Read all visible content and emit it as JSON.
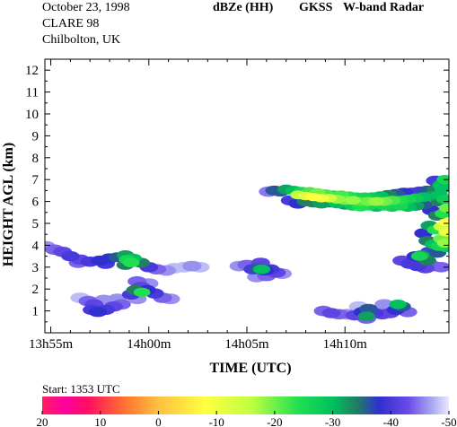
{
  "header": {
    "date": "October 23, 1998",
    "campaign": "CLARE 98",
    "location": "Chilbolton, UK",
    "product": "dBZe (HH)",
    "instrument": "GKSS",
    "radar": "W-band Radar"
  },
  "start_text": "Start: 1353 UTC",
  "colors": {
    "background": "#ffffff",
    "plot_border": "#000000"
  },
  "chart_data": {
    "type": "heatmap",
    "xlabel": "TIME (UTC)",
    "ylabel": "HEIGHT AGL (km)",
    "x_unit": "minutes after 13h55m",
    "xlim": [
      -0.3,
      20.3
    ],
    "ylim": [
      0,
      12.5
    ],
    "x_ticks": [
      {
        "label": "13h55m",
        "value": 0
      },
      {
        "label": "14h00m",
        "value": 5
      },
      {
        "label": "14h05m",
        "value": 10
      },
      {
        "label": "14h10m",
        "value": 15
      }
    ],
    "y_ticks": [
      1,
      2,
      3,
      4,
      5,
      6,
      7,
      8,
      9,
      10,
      11,
      12
    ],
    "grid": false,
    "colorbar": {
      "unit": "dBZe",
      "ticks": [
        20,
        10,
        0,
        -10,
        -20,
        -30,
        -40,
        -50
      ],
      "stops": [
        {
          "value": 20,
          "color": "#ff2060"
        },
        {
          "value": 16,
          "color": "#ff00a0"
        },
        {
          "value": 12,
          "color": "#ff1060"
        },
        {
          "value": 6,
          "color": "#ff7030"
        },
        {
          "value": 0,
          "color": "#ffc040"
        },
        {
          "value": -8,
          "color": "#ffff40"
        },
        {
          "value": -16,
          "color": "#c0ff40"
        },
        {
          "value": -24,
          "color": "#20e050"
        },
        {
          "value": -30,
          "color": "#00c060"
        },
        {
          "value": -34,
          "color": "#208060"
        },
        {
          "value": -38,
          "color": "#3030d0"
        },
        {
          "value": -43,
          "color": "#6a4ae8"
        },
        {
          "value": -47,
          "color": "#a8a8f0"
        },
        {
          "value": -50,
          "color": "#e8e8ff"
        }
      ]
    },
    "echoes": [
      {
        "name": "upper-layer-edge",
        "cells": [
          [
            11.1,
            6.45,
            -45
          ],
          [
            11.4,
            6.5,
            -36
          ],
          [
            11.7,
            6.45,
            -36
          ],
          [
            12.0,
            6.55,
            -32
          ],
          [
            12.4,
            6.5,
            -30
          ],
          [
            12.8,
            6.45,
            -26
          ],
          [
            13.2,
            6.45,
            -22
          ],
          [
            13.6,
            6.4,
            -20
          ],
          [
            14.0,
            6.35,
            -22
          ],
          [
            14.4,
            6.3,
            -24
          ],
          [
            14.8,
            6.3,
            -22
          ],
          [
            15.2,
            6.25,
            -24
          ],
          [
            15.6,
            6.2,
            -26
          ],
          [
            16.0,
            6.2,
            -26
          ],
          [
            16.4,
            6.2,
            -28
          ],
          [
            16.8,
            6.25,
            -30
          ],
          [
            17.2,
            6.3,
            -34
          ],
          [
            17.6,
            6.35,
            -36
          ],
          [
            18.0,
            6.4,
            -38
          ],
          [
            18.4,
            6.4,
            -40
          ],
          [
            18.8,
            6.45,
            -40
          ],
          [
            19.2,
            6.5,
            -36
          ],
          [
            19.6,
            6.55,
            -34
          ],
          [
            20.0,
            6.6,
            -30
          ],
          [
            12.2,
            6.05,
            -40
          ],
          [
            12.6,
            5.9,
            -38
          ],
          [
            13.0,
            6.0,
            -34
          ],
          [
            13.4,
            5.95,
            -34
          ],
          [
            13.8,
            5.9,
            -32
          ],
          [
            14.2,
            5.95,
            -34
          ],
          [
            14.6,
            5.9,
            -30
          ],
          [
            15.0,
            5.85,
            -32
          ],
          [
            15.4,
            5.8,
            -28
          ],
          [
            15.8,
            5.75,
            -24
          ],
          [
            16.2,
            5.8,
            -26
          ],
          [
            16.6,
            5.75,
            -30
          ],
          [
            17.0,
            5.8,
            -26
          ],
          [
            17.4,
            5.75,
            -28
          ],
          [
            17.8,
            5.8,
            -26
          ],
          [
            18.2,
            5.75,
            -30
          ],
          [
            18.6,
            5.8,
            -32
          ],
          [
            19.0,
            5.85,
            -36
          ]
        ]
      },
      {
        "name": "upper-layer-core",
        "cells": [
          [
            12.6,
            6.3,
            -16
          ],
          [
            13.0,
            6.25,
            -12
          ],
          [
            13.4,
            6.2,
            -8
          ],
          [
            13.8,
            6.15,
            -10
          ],
          [
            14.2,
            6.15,
            -14
          ],
          [
            14.6,
            6.1,
            -18
          ],
          [
            15.0,
            6.05,
            -20
          ],
          [
            15.4,
            6.05,
            -18
          ],
          [
            15.8,
            6.0,
            -22
          ],
          [
            16.2,
            6.0,
            -20
          ],
          [
            16.6,
            6.0,
            -18
          ],
          [
            17.0,
            6.0,
            -20
          ],
          [
            17.4,
            6.05,
            -22
          ],
          [
            17.8,
            6.05,
            -24
          ],
          [
            18.2,
            6.1,
            -26
          ],
          [
            18.6,
            6.15,
            -28
          ],
          [
            19.0,
            6.2,
            -30
          ],
          [
            19.4,
            6.25,
            -32
          ],
          [
            19.8,
            6.3,
            -30
          ]
        ]
      },
      {
        "name": "upper-right-plume",
        "cells": [
          [
            19.6,
            6.95,
            -40
          ],
          [
            19.9,
            6.75,
            -30
          ],
          [
            20.1,
            7.0,
            -26
          ],
          [
            19.8,
            6.0,
            -34
          ],
          [
            20.1,
            6.1,
            -28
          ],
          [
            19.4,
            5.6,
            -38
          ],
          [
            19.7,
            5.35,
            -34
          ],
          [
            20.0,
            5.45,
            -24
          ],
          [
            20.2,
            5.7,
            -20
          ],
          [
            19.3,
            4.9,
            -32
          ],
          [
            19.6,
            4.7,
            -24
          ],
          [
            19.9,
            4.85,
            -14
          ],
          [
            20.15,
            5.05,
            -8
          ],
          [
            20.15,
            4.6,
            -10
          ],
          [
            19.9,
            4.3,
            -20
          ],
          [
            20.1,
            4.1,
            -18
          ],
          [
            19.0,
            4.55,
            -38
          ],
          [
            19.2,
            4.2,
            -34
          ],
          [
            19.5,
            4.05,
            -30
          ],
          [
            19.8,
            3.95,
            -26
          ],
          [
            20.15,
            3.9,
            -28
          ],
          [
            19.3,
            3.7,
            -40
          ],
          [
            19.7,
            3.65,
            -36
          ]
        ]
      },
      {
        "name": "mid-right-clump",
        "cells": [
          [
            17.9,
            3.3,
            -42
          ],
          [
            18.3,
            3.15,
            -40
          ],
          [
            18.6,
            3.5,
            -38
          ],
          [
            18.9,
            3.55,
            -32
          ],
          [
            19.2,
            3.3,
            -34
          ],
          [
            18.7,
            3.05,
            -40
          ],
          [
            19.1,
            2.95,
            -42
          ],
          [
            19.5,
            3.05,
            -44
          ],
          [
            19.9,
            3.0,
            -44
          ],
          [
            18.8,
            3.5,
            -26
          ]
        ]
      },
      {
        "name": "low-left-band",
        "cells": [
          [
            -0.25,
            3.95,
            -46
          ],
          [
            0.2,
            3.8,
            -44
          ],
          [
            0.6,
            3.7,
            -42
          ],
          [
            1.0,
            3.5,
            -40
          ],
          [
            1.5,
            3.35,
            -42
          ],
          [
            2.0,
            3.25,
            -40
          ],
          [
            2.5,
            3.3,
            -38
          ],
          [
            3.0,
            3.4,
            -38
          ],
          [
            3.4,
            3.45,
            -36
          ],
          [
            3.8,
            3.55,
            -32
          ],
          [
            4.2,
            3.4,
            -30
          ],
          [
            4.6,
            3.2,
            -34
          ],
          [
            5.0,
            3.0,
            -40
          ],
          [
            5.4,
            2.9,
            -44
          ],
          [
            5.9,
            2.85,
            -46
          ],
          [
            6.3,
            2.95,
            -48
          ],
          [
            6.8,
            3.0,
            -48
          ],
          [
            7.2,
            3.05,
            -46
          ],
          [
            7.6,
            3.0,
            -48
          ],
          [
            2.8,
            3.15,
            -40
          ],
          [
            3.8,
            3.1,
            -34
          ],
          [
            4.1,
            3.2,
            -24
          ],
          [
            3.9,
            3.35,
            -26
          ],
          [
            1.4,
            3.2,
            -44
          ]
        ]
      },
      {
        "name": "low-left-base",
        "cells": [
          [
            1.5,
            1.6,
            -48
          ],
          [
            1.9,
            1.45,
            -44
          ],
          [
            2.2,
            1.3,
            -42
          ],
          [
            2.1,
            1.05,
            -40
          ],
          [
            2.4,
            0.95,
            -38
          ],
          [
            2.8,
            1.05,
            -40
          ],
          [
            3.2,
            1.2,
            -42
          ],
          [
            3.6,
            1.3,
            -44
          ],
          [
            3.4,
            1.55,
            -46
          ],
          [
            2.7,
            1.5,
            -46
          ],
          [
            4.4,
            1.55,
            -46
          ],
          [
            4.1,
            1.75,
            -40
          ],
          [
            4.3,
            1.95,
            -34
          ],
          [
            4.6,
            2.1,
            -42
          ],
          [
            4.9,
            1.95,
            -38
          ],
          [
            5.3,
            1.8,
            -40
          ],
          [
            5.7,
            1.6,
            -44
          ],
          [
            6.1,
            1.55,
            -46
          ],
          [
            4.4,
            2.35,
            -44
          ],
          [
            5.0,
            2.25,
            -46
          ],
          [
            4.65,
            1.85,
            -24
          ]
        ]
      },
      {
        "name": "mid-center-cell",
        "cells": [
          [
            9.6,
            3.05,
            -46
          ],
          [
            10.0,
            3.1,
            -44
          ],
          [
            10.3,
            2.9,
            -40
          ],
          [
            10.6,
            2.95,
            -36
          ],
          [
            10.9,
            2.85,
            -38
          ],
          [
            11.2,
            2.9,
            -40
          ],
          [
            11.5,
            2.75,
            -42
          ],
          [
            11.8,
            2.7,
            -46
          ],
          [
            10.7,
            3.2,
            -42
          ],
          [
            10.5,
            2.55,
            -46
          ],
          [
            11.0,
            2.6,
            -44
          ],
          [
            10.75,
            2.9,
            -30
          ]
        ]
      },
      {
        "name": "low-right-base",
        "cells": [
          [
            13.9,
            1.0,
            -44
          ],
          [
            14.3,
            0.9,
            -42
          ],
          [
            14.7,
            0.85,
            -44
          ],
          [
            15.1,
            0.85,
            -46
          ],
          [
            15.5,
            0.8,
            -42
          ],
          [
            15.9,
            0.95,
            -38
          ],
          [
            16.2,
            1.1,
            -36
          ],
          [
            16.5,
            0.9,
            -40
          ],
          [
            16.9,
            0.85,
            -42
          ],
          [
            17.3,
            0.9,
            -42
          ],
          [
            17.6,
            1.05,
            -38
          ],
          [
            17.9,
            1.2,
            -36
          ],
          [
            18.2,
            0.95,
            -44
          ],
          [
            16.1,
            0.65,
            -44
          ],
          [
            15.7,
            1.2,
            -48
          ],
          [
            17.0,
            1.3,
            -46
          ],
          [
            17.7,
            1.3,
            -30
          ],
          [
            16.1,
            0.75,
            -32
          ]
        ]
      }
    ]
  }
}
